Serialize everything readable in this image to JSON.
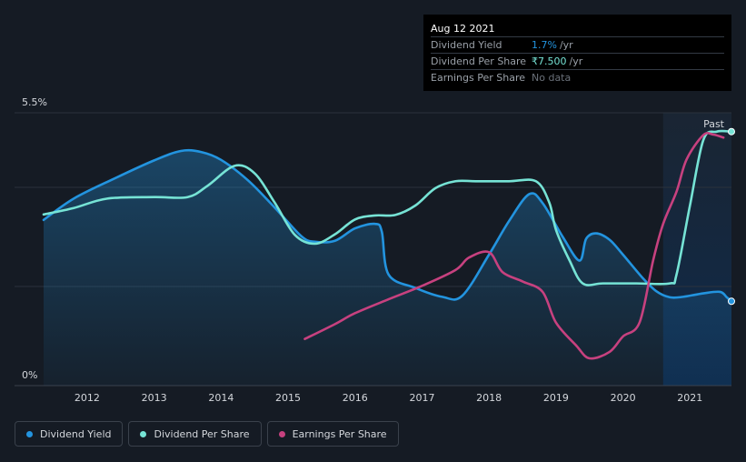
{
  "tooltip": {
    "date": "Aug 12 2021",
    "rows": [
      {
        "label": "Dividend Yield",
        "value": "1.7%",
        "unit": "/yr"
      },
      {
        "label": "Dividend Per Share",
        "value": "₹7.500",
        "unit": "/yr"
      },
      {
        "label": "Earnings Per Share",
        "value": "No data",
        "unit": ""
      }
    ]
  },
  "legend": [
    {
      "label": "Dividend Yield",
      "color": "#2394df"
    },
    {
      "label": "Dividend Per Share",
      "color": "#76e3d5"
    },
    {
      "label": "Earnings Per Share",
      "color": "#c7417f"
    }
  ],
  "chart_data": {
    "type": "line",
    "y_top_label": "5.5%",
    "y_bottom_label": "0%",
    "ylim": [
      0,
      5.5
    ],
    "xlim": [
      2011.35,
      2021.62
    ],
    "past_label": "Past",
    "past_start": 2020.6,
    "x_ticks": [
      "2012",
      "2013",
      "2014",
      "2015",
      "2016",
      "2017",
      "2018",
      "2019",
      "2020",
      "2021"
    ],
    "grid": true,
    "series": [
      {
        "name": "Dividend Yield",
        "color": "#2394df",
        "fill": true,
        "points": [
          [
            2011.35,
            3.34
          ],
          [
            2011.8,
            3.77
          ],
          [
            2012.4,
            4.17
          ],
          [
            2013.0,
            4.54
          ],
          [
            2013.4,
            4.73
          ],
          [
            2013.7,
            4.71
          ],
          [
            2014.0,
            4.55
          ],
          [
            2014.4,
            4.14
          ],
          [
            2014.8,
            3.59
          ],
          [
            2015.2,
            3.01
          ],
          [
            2015.4,
            2.9
          ],
          [
            2015.7,
            2.92
          ],
          [
            2016.0,
            3.17
          ],
          [
            2016.3,
            3.26
          ],
          [
            2016.4,
            3.1
          ],
          [
            2016.5,
            2.24
          ],
          [
            2016.9,
            1.97
          ],
          [
            2017.3,
            1.79
          ],
          [
            2017.6,
            1.81
          ],
          [
            2018.0,
            2.64
          ],
          [
            2018.3,
            3.32
          ],
          [
            2018.6,
            3.86
          ],
          [
            2018.8,
            3.68
          ],
          [
            2019.1,
            3.0
          ],
          [
            2019.35,
            2.52
          ],
          [
            2019.45,
            2.96
          ],
          [
            2019.6,
            3.07
          ],
          [
            2019.8,
            2.94
          ],
          [
            2020.0,
            2.64
          ],
          [
            2020.3,
            2.16
          ],
          [
            2020.5,
            1.9
          ],
          [
            2020.7,
            1.78
          ],
          [
            2020.9,
            1.79
          ],
          [
            2021.2,
            1.86
          ],
          [
            2021.45,
            1.89
          ],
          [
            2021.55,
            1.78
          ],
          [
            2021.62,
            1.7
          ]
        ]
      },
      {
        "name": "Dividend Per Share",
        "color": "#76e3d5",
        "fill": false,
        "points": [
          [
            2011.35,
            3.45
          ],
          [
            2011.8,
            3.58
          ],
          [
            2012.3,
            3.77
          ],
          [
            2013.0,
            3.8
          ],
          [
            2013.5,
            3.8
          ],
          [
            2013.8,
            4.03
          ],
          [
            2014.2,
            4.43
          ],
          [
            2014.5,
            4.28
          ],
          [
            2014.8,
            3.69
          ],
          [
            2015.1,
            3.04
          ],
          [
            2015.4,
            2.86
          ],
          [
            2015.7,
            3.05
          ],
          [
            2016.0,
            3.35
          ],
          [
            2016.3,
            3.43
          ],
          [
            2016.6,
            3.44
          ],
          [
            2016.9,
            3.63
          ],
          [
            2017.2,
            3.98
          ],
          [
            2017.5,
            4.12
          ],
          [
            2017.8,
            4.12
          ],
          [
            2018.3,
            4.12
          ],
          [
            2018.7,
            4.12
          ],
          [
            2018.9,
            3.69
          ],
          [
            2019.0,
            3.14
          ],
          [
            2019.2,
            2.53
          ],
          [
            2019.4,
            2.06
          ],
          [
            2019.7,
            2.06
          ],
          [
            2020.2,
            2.06
          ],
          [
            2020.7,
            2.06
          ],
          [
            2020.8,
            2.24
          ],
          [
            2021.0,
            3.63
          ],
          [
            2021.2,
            4.95
          ],
          [
            2021.4,
            5.12
          ],
          [
            2021.62,
            5.12
          ]
        ]
      },
      {
        "name": "Earnings Per Share",
        "color": "#c7417f",
        "fill": false,
        "points": [
          [
            2015.25,
            0.94
          ],
          [
            2015.7,
            1.24
          ],
          [
            2016.0,
            1.46
          ],
          [
            2016.5,
            1.74
          ],
          [
            2017.0,
            2.01
          ],
          [
            2017.5,
            2.33
          ],
          [
            2017.7,
            2.58
          ],
          [
            2018.0,
            2.69
          ],
          [
            2018.2,
            2.29
          ],
          [
            2018.5,
            2.1
          ],
          [
            2018.8,
            1.89
          ],
          [
            2019.0,
            1.27
          ],
          [
            2019.3,
            0.81
          ],
          [
            2019.5,
            0.55
          ],
          [
            2019.8,
            0.68
          ],
          [
            2020.0,
            0.99
          ],
          [
            2020.25,
            1.28
          ],
          [
            2020.45,
            2.52
          ],
          [
            2020.6,
            3.26
          ],
          [
            2020.8,
            3.91
          ],
          [
            2020.95,
            4.56
          ],
          [
            2021.2,
            5.05
          ],
          [
            2021.35,
            5.06
          ],
          [
            2021.5,
            5.0
          ]
        ]
      }
    ]
  }
}
